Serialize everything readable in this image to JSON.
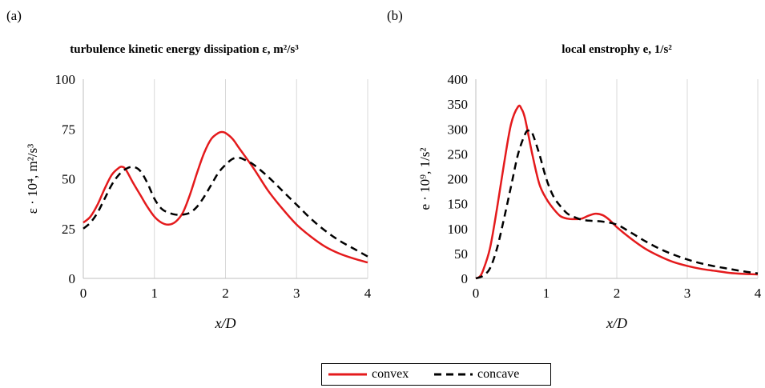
{
  "panels": [
    "(a)",
    "(b)"
  ],
  "legend": {
    "convex": {
      "label": "convex",
      "color": "#e41a1c",
      "dash": "solid"
    },
    "concave": {
      "label": "concave",
      "color": "#000000",
      "dash": "dashed"
    }
  },
  "chart_data": [
    {
      "type": "line",
      "title_text": "turbulence kinetic energy dissipation ε, m²/s³",
      "xlabel": "x/D",
      "ylabel": "ε · 10⁴, m²/s³",
      "xlim": [
        0,
        4
      ],
      "ylim": [
        0,
        100
      ],
      "xticks": [
        "0",
        "1",
        "2",
        "3",
        "4"
      ],
      "yticks": [
        "0",
        "25",
        "50",
        "75",
        "100"
      ],
      "grid": "vertical",
      "series": [
        {
          "name": "convex",
          "x": [
            0,
            0.1,
            0.2,
            0.3,
            0.4,
            0.5,
            0.55,
            0.6,
            0.7,
            0.8,
            0.9,
            1.0,
            1.1,
            1.2,
            1.3,
            1.4,
            1.5,
            1.6,
            1.7,
            1.8,
            1.9,
            1.95,
            2.0,
            2.1,
            2.2,
            2.4,
            2.6,
            2.8,
            3.0,
            3.2,
            3.4,
            3.6,
            3.8,
            4.0
          ],
          "y": [
            28,
            31,
            37,
            45,
            52,
            55.5,
            56,
            54.5,
            48,
            42,
            36,
            31,
            28,
            27,
            28.5,
            33,
            42,
            53,
            63,
            70,
            73,
            73.5,
            73,
            70,
            65,
            55,
            44,
            35,
            27,
            21,
            16,
            12.5,
            10,
            8
          ]
        },
        {
          "name": "concave",
          "x": [
            0,
            0.1,
            0.2,
            0.3,
            0.4,
            0.5,
            0.6,
            0.7,
            0.8,
            0.9,
            1.0,
            1.1,
            1.2,
            1.3,
            1.4,
            1.5,
            1.6,
            1.7,
            1.8,
            1.9,
            2.0,
            2.1,
            2.2,
            2.3,
            2.4,
            2.6,
            2.8,
            3.0,
            3.2,
            3.4,
            3.6,
            3.8,
            4.0
          ],
          "y": [
            25,
            28,
            33,
            40,
            47,
            52,
            55,
            56,
            54,
            48,
            40,
            35,
            33,
            32,
            32,
            33,
            36,
            41,
            47,
            53,
            57,
            60,
            60.5,
            59,
            57,
            51,
            44,
            37,
            30,
            24,
            19,
            15,
            11
          ]
        }
      ]
    },
    {
      "type": "line",
      "title_text": "local enstrophy e, 1/s²",
      "xlabel": "x/D",
      "ylabel": "e · 10⁹, 1/s²",
      "xlim": [
        0,
        4
      ],
      "ylim": [
        0,
        400
      ],
      "xticks": [
        "0",
        "1",
        "2",
        "3",
        "4"
      ],
      "yticks": [
        "0",
        "50",
        "100",
        "150",
        "200",
        "250",
        "300",
        "350",
        "400"
      ],
      "grid": "vertical",
      "series": [
        {
          "name": "convex",
          "x": [
            0,
            0.05,
            0.1,
            0.2,
            0.3,
            0.4,
            0.5,
            0.6,
            0.65,
            0.7,
            0.8,
            0.9,
            1.0,
            1.1,
            1.2,
            1.3,
            1.4,
            1.5,
            1.6,
            1.7,
            1.8,
            1.9,
            2.0,
            2.2,
            2.4,
            2.6,
            2.8,
            3.0,
            3.2,
            3.4,
            3.6,
            3.8,
            4.0
          ],
          "y": [
            0,
            3,
            15,
            60,
            140,
            230,
            310,
            345,
            340,
            320,
            250,
            190,
            160,
            140,
            125,
            120,
            119,
            120,
            126,
            130,
            127,
            117,
            103,
            80,
            60,
            45,
            33,
            25,
            19,
            15,
            11,
            9,
            8
          ]
        },
        {
          "name": "concave",
          "x": [
            0,
            0.1,
            0.2,
            0.3,
            0.4,
            0.5,
            0.6,
            0.7,
            0.75,
            0.8,
            0.9,
            1.0,
            1.1,
            1.2,
            1.3,
            1.4,
            1.5,
            1.6,
            1.8,
            2.0,
            2.2,
            2.4,
            2.6,
            2.8,
            3.0,
            3.2,
            3.4,
            3.6,
            3.8,
            4.0
          ],
          "y": [
            0,
            5,
            20,
            60,
            120,
            185,
            250,
            290,
            297,
            292,
            250,
            200,
            165,
            145,
            130,
            123,
            118,
            116,
            114,
            108,
            92,
            75,
            60,
            48,
            38,
            30,
            24,
            19,
            14,
            10
          ]
        }
      ]
    }
  ]
}
